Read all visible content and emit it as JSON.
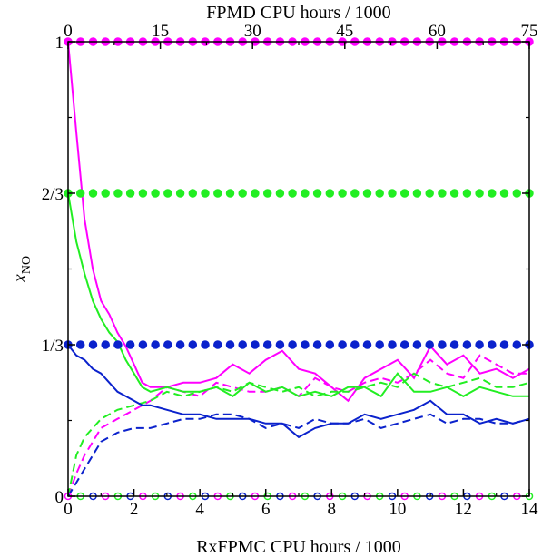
{
  "chart_data": {
    "type": "line",
    "title": "",
    "xlabel": "RxFPMC CPU hours / 1000",
    "x2label": "FPMD CPU hours / 1000",
    "ylabel": "x",
    "ylabel_sub": "NO",
    "xlim": [
      0,
      14
    ],
    "x2lim": [
      0,
      75
    ],
    "ylim": [
      0,
      1
    ],
    "xticks": [
      0,
      2,
      4,
      6,
      8,
      10,
      12,
      14
    ],
    "xtick_labels": [
      "0",
      "2",
      "4",
      "6",
      "8",
      "10",
      "12",
      "14"
    ],
    "x2ticks": [
      0,
      15,
      30,
      45,
      60,
      75
    ],
    "x2tick_labels": [
      "0",
      "15",
      "30",
      "45",
      "60",
      "75"
    ],
    "yticks": [
      0,
      0.3333,
      0.6667,
      1
    ],
    "ytick_labels": [
      "0",
      "1/3",
      "2/3",
      "1"
    ],
    "grid": false,
    "legend": "none",
    "colors": {
      "magenta": "#ff00ff",
      "green": "#22ee22",
      "blue": "#0b22cc"
    },
    "series": [
      {
        "color": "magenta",
        "style": "solid",
        "x": [
          0,
          0.25,
          0.5,
          0.75,
          1,
          1.25,
          1.5,
          1.75,
          2,
          2.25,
          2.5,
          3,
          3.5,
          4,
          4.5,
          5,
          5.5,
          6,
          6.5,
          7,
          7.5,
          8,
          8.5,
          9,
          9.5,
          10,
          10.5,
          11,
          11.5,
          12,
          12.5,
          13,
          13.5,
          14
        ],
        "y": [
          1,
          0.8,
          0.61,
          0.5,
          0.43,
          0.4,
          0.36,
          0.33,
          0.29,
          0.25,
          0.24,
          0.24,
          0.25,
          0.25,
          0.26,
          0.29,
          0.27,
          0.3,
          0.32,
          0.28,
          0.27,
          0.24,
          0.21,
          0.26,
          0.28,
          0.3,
          0.26,
          0.33,
          0.29,
          0.31,
          0.27,
          0.28,
          0.26,
          0.28
        ]
      },
      {
        "color": "magenta",
        "style": "dashed",
        "x": [
          0,
          0.25,
          0.5,
          0.75,
          1,
          1.5,
          2,
          2.5,
          3,
          3.5,
          4,
          4.5,
          5,
          5.5,
          6,
          6.5,
          7,
          7.5,
          8,
          8.5,
          9,
          9.5,
          10,
          10.5,
          11,
          11.5,
          12,
          12.5,
          13,
          13.5,
          14
        ],
        "y": [
          0,
          0.05,
          0.09,
          0.12,
          0.15,
          0.17,
          0.19,
          0.21,
          0.24,
          0.23,
          0.22,
          0.25,
          0.24,
          0.23,
          0.23,
          0.24,
          0.22,
          0.26,
          0.24,
          0.23,
          0.25,
          0.26,
          0.25,
          0.27,
          0.3,
          0.27,
          0.26,
          0.31,
          0.29,
          0.27,
          0.27
        ]
      },
      {
        "color": "green",
        "style": "solid",
        "x": [
          0,
          0.25,
          0.5,
          0.75,
          1,
          1.25,
          1.5,
          1.75,
          2,
          2.25,
          2.5,
          3,
          3.5,
          4,
          4.5,
          5,
          5.5,
          6,
          6.5,
          7,
          7.5,
          8,
          8.5,
          9,
          9.5,
          10,
          10.5,
          11,
          11.5,
          12,
          12.5,
          13,
          13.5,
          14
        ],
        "y": [
          0.667,
          0.56,
          0.49,
          0.43,
          0.39,
          0.36,
          0.34,
          0.3,
          0.27,
          0.24,
          0.23,
          0.24,
          0.23,
          0.23,
          0.24,
          0.22,
          0.25,
          0.23,
          0.24,
          0.22,
          0.23,
          0.22,
          0.24,
          0.24,
          0.22,
          0.27,
          0.23,
          0.23,
          0.24,
          0.22,
          0.24,
          0.23,
          0.22,
          0.22
        ]
      },
      {
        "color": "green",
        "style": "dashed",
        "x": [
          0,
          0.25,
          0.5,
          0.75,
          1,
          1.5,
          2,
          2.5,
          3,
          3.5,
          4,
          4.5,
          5,
          5.5,
          6,
          6.5,
          7,
          7.5,
          8,
          8.5,
          9,
          9.5,
          10,
          10.5,
          11,
          11.5,
          12,
          12.5,
          13,
          13.5,
          14
        ],
        "y": [
          0,
          0.09,
          0.13,
          0.15,
          0.17,
          0.19,
          0.2,
          0.21,
          0.23,
          0.22,
          0.23,
          0.24,
          0.23,
          0.25,
          0.24,
          0.23,
          0.24,
          0.22,
          0.23,
          0.23,
          0.24,
          0.25,
          0.24,
          0.27,
          0.25,
          0.24,
          0.25,
          0.26,
          0.24,
          0.24,
          0.25
        ]
      },
      {
        "color": "blue",
        "style": "solid",
        "x": [
          0,
          0.25,
          0.5,
          0.75,
          1,
          1.25,
          1.5,
          1.75,
          2,
          2.25,
          2.5,
          3,
          3.5,
          4,
          4.5,
          5,
          5.5,
          6,
          6.5,
          7,
          7.5,
          8,
          8.5,
          9,
          9.5,
          10,
          10.5,
          11,
          11.5,
          12,
          12.5,
          13,
          13.5,
          14
        ],
        "y": [
          0.333,
          0.31,
          0.3,
          0.28,
          0.27,
          0.25,
          0.23,
          0.22,
          0.21,
          0.2,
          0.2,
          0.19,
          0.18,
          0.18,
          0.17,
          0.17,
          0.17,
          0.16,
          0.16,
          0.13,
          0.15,
          0.16,
          0.16,
          0.18,
          0.17,
          0.18,
          0.19,
          0.21,
          0.18,
          0.18,
          0.16,
          0.17,
          0.16,
          0.17
        ]
      },
      {
        "color": "blue",
        "style": "dashed",
        "x": [
          0,
          0.25,
          0.5,
          0.75,
          1,
          1.5,
          2,
          2.5,
          3,
          3.5,
          4,
          4.5,
          5,
          5.5,
          6,
          6.5,
          7,
          7.5,
          8,
          8.5,
          9,
          9.5,
          10,
          10.5,
          11,
          11.5,
          12,
          12.5,
          13,
          13.5,
          14
        ],
        "y": [
          0,
          0.03,
          0.06,
          0.09,
          0.12,
          0.14,
          0.15,
          0.15,
          0.16,
          0.17,
          0.17,
          0.18,
          0.18,
          0.17,
          0.15,
          0.16,
          0.15,
          0.17,
          0.16,
          0.16,
          0.17,
          0.15,
          0.16,
          0.17,
          0.18,
          0.16,
          0.17,
          0.17,
          0.16,
          0.16,
          0.17
        ]
      }
    ],
    "marker_rows": [
      {
        "y": 1,
        "color": "magenta",
        "filled": true,
        "count": 38
      },
      {
        "y": 0.6667,
        "color": "green",
        "filled": true,
        "count": 38
      },
      {
        "y": 0.3333,
        "color": "blue",
        "filled": true,
        "count": 38
      },
      {
        "y": 0,
        "colors": [
          "magenta",
          "green",
          "blue"
        ],
        "filled": false,
        "count": 38
      }
    ]
  }
}
